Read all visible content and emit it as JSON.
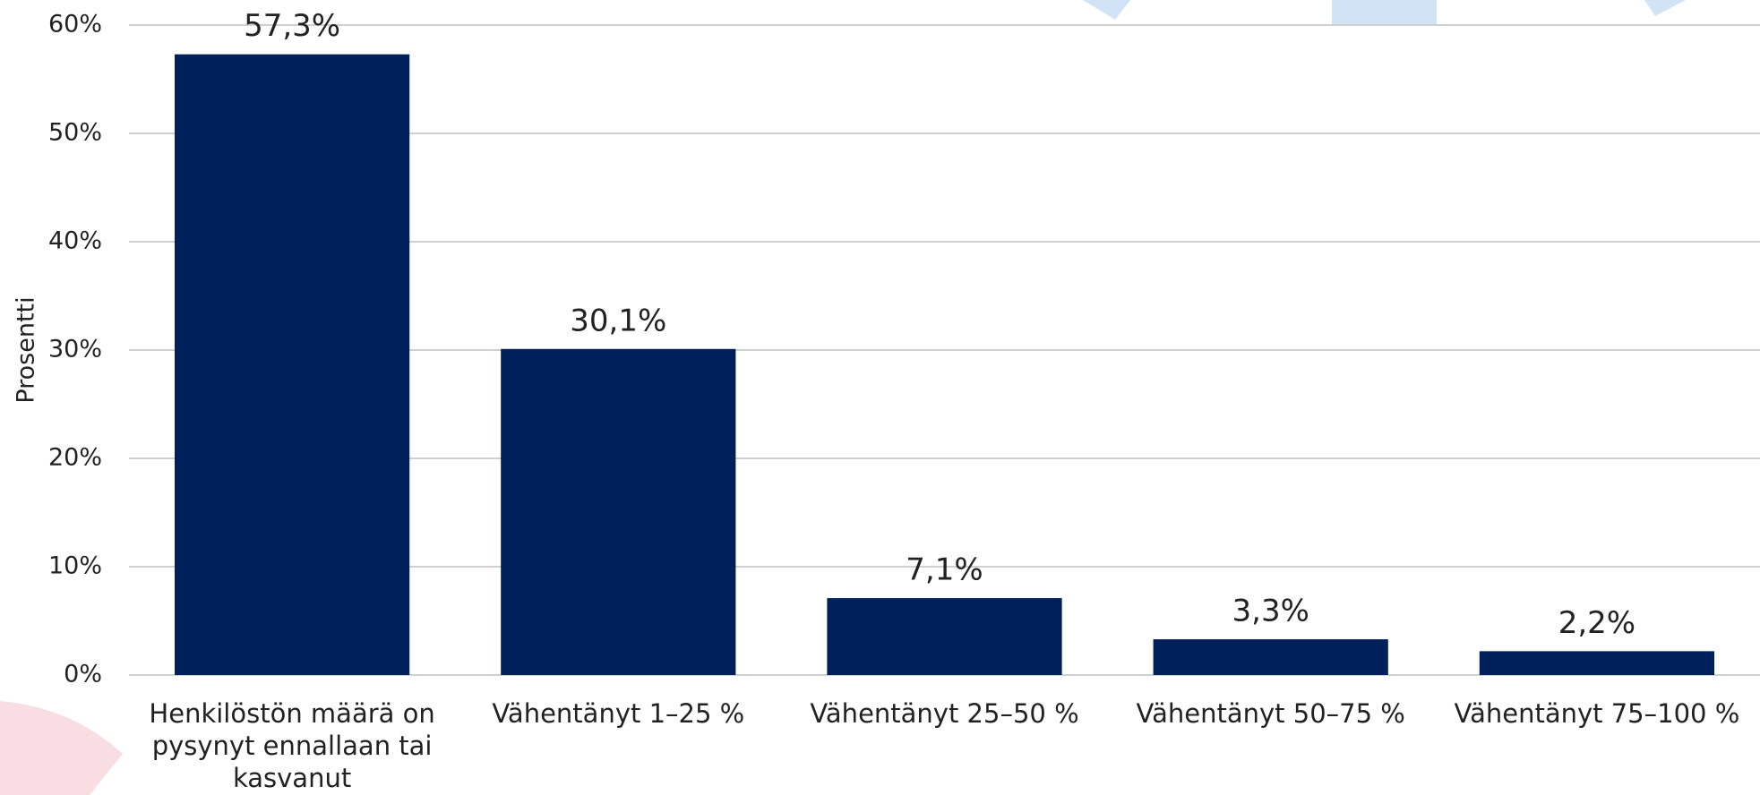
{
  "chart_data": {
    "type": "bar",
    "y_axis_label": "Prosentti",
    "categories": [
      "Henkilöstön määrä on pysynyt ennallaan tai kasvanut",
      "Vähentänyt 1–25 %",
      "Vähentänyt 25–50 %",
      "Vähentänyt 50–75 %",
      "Vähentänyt 75–100 %"
    ],
    "values": [
      57.3,
      30.1,
      7.1,
      3.3,
      2.2
    ],
    "value_labels": [
      "57,3%",
      "30,1%",
      "7,1%",
      "3,3%",
      "2,2%"
    ],
    "color": "#00205b",
    "ylim": [
      0,
      60
    ],
    "yticks": [
      {
        "value": 0,
        "label": "0%"
      },
      {
        "value": 10,
        "label": "10%"
      },
      {
        "value": 20,
        "label": "20%"
      },
      {
        "value": 30,
        "label": "30%"
      },
      {
        "value": 40,
        "label": "40%"
      },
      {
        "value": 50,
        "label": "50%"
      },
      {
        "value": 60,
        "label": "60%"
      }
    ],
    "grid": true
  }
}
